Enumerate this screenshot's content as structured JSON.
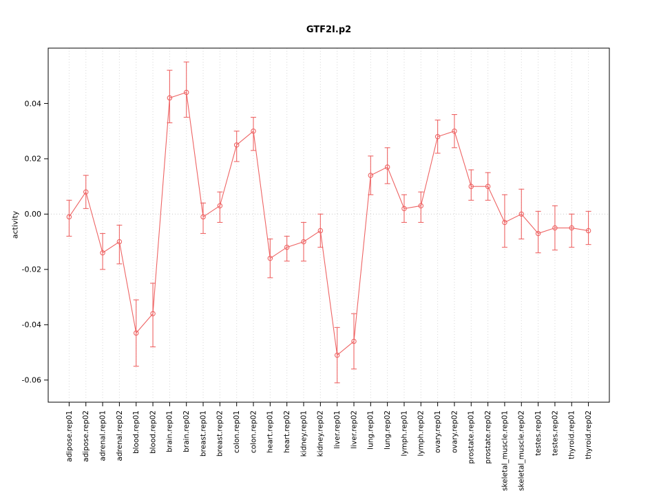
{
  "page": {
    "background_color": "#ffffff"
  },
  "chart_data": {
    "type": "line",
    "subtype": "points-with-error-bars",
    "title": "GTF2I.p2",
    "xlabel": "",
    "ylabel": "activity",
    "ylim": [
      -0.068,
      0.06
    ],
    "yticks": [
      -0.06,
      -0.04,
      -0.02,
      0,
      0.02,
      0.04
    ],
    "grid": "dotted vertical line at each category, dotted horizontal line at zero",
    "legend_position": "none",
    "accent_color": "#ee6363",
    "grid_color": "#d6d6d6",
    "zero_line_color": "#c8c8c8",
    "axis_color": "#000000",
    "point_style": "open-circle",
    "categories": [
      "adipose.rep01",
      "adipose.rep02",
      "adrenal.rep01",
      "adrenal.rep02",
      "blood.rep01",
      "blood.rep02",
      "brain.rep01",
      "brain.rep02",
      "breast.rep01",
      "breast.rep02",
      "colon.rep01",
      "colon.rep02",
      "heart.rep01",
      "heart.rep02",
      "kidney.rep01",
      "kidney.rep02",
      "liver.rep01",
      "liver.rep02",
      "lung.rep01",
      "lung.rep02",
      "lymph.rep01",
      "lymph.rep02",
      "ovary.rep01",
      "ovary.rep02",
      "prostate.rep01",
      "prostate.rep02",
      "skeletal_muscle.rep01",
      "skeletal_muscle.rep02",
      "testes.rep01",
      "testes.rep02",
      "thyroid.rep01",
      "thyroid.rep02"
    ],
    "series": [
      {
        "name": "activity",
        "values": [
          -0.001,
          0.008,
          -0.014,
          -0.01,
          -0.043,
          -0.036,
          0.042,
          0.044,
          -0.001,
          0.003,
          0.025,
          0.03,
          -0.016,
          -0.012,
          -0.01,
          -0.006,
          -0.051,
          -0.046,
          0.014,
          0.017,
          0.002,
          0.003,
          0.028,
          0.03,
          0.01,
          0.01,
          -0.003,
          0.0,
          -0.007,
          -0.005,
          -0.005,
          -0.006
        ],
        "ci_low": [
          -0.008,
          0.002,
          -0.02,
          -0.018,
          -0.055,
          -0.048,
          0.033,
          0.035,
          -0.007,
          -0.003,
          0.019,
          0.023,
          -0.023,
          -0.017,
          -0.017,
          -0.012,
          -0.061,
          -0.056,
          0.007,
          0.011,
          -0.003,
          -0.003,
          0.022,
          0.024,
          0.005,
          0.005,
          -0.012,
          -0.009,
          -0.014,
          -0.013,
          -0.012,
          -0.011
        ],
        "ci_high": [
          0.005,
          0.014,
          -0.007,
          -0.004,
          -0.031,
          -0.025,
          0.052,
          0.055,
          0.004,
          0.008,
          0.03,
          0.035,
          -0.009,
          -0.008,
          -0.003,
          0.0,
          -0.041,
          -0.036,
          0.021,
          0.024,
          0.007,
          0.008,
          0.034,
          0.036,
          0.016,
          0.015,
          0.007,
          0.009,
          0.001,
          0.003,
          0.0,
          0.001
        ]
      }
    ]
  }
}
